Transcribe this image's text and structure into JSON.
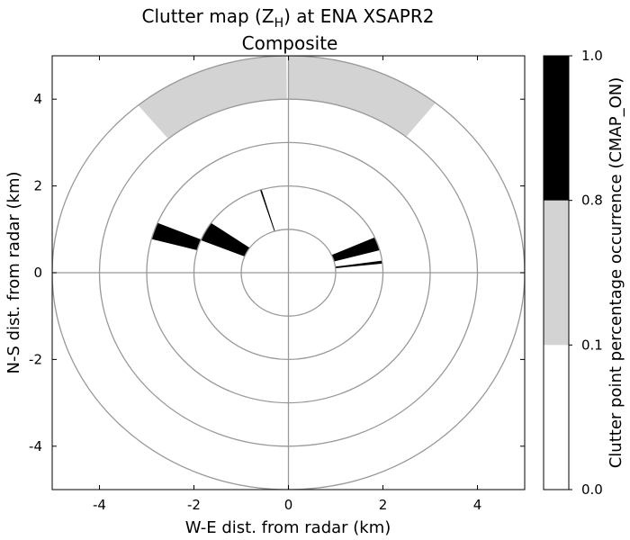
{
  "chart_data": {
    "type": "polar-clutter-map",
    "title": {
      "prefix": "Clutter map (Z",
      "subscript": "H",
      "suffix": ") at ENA XSAPR2",
      "line2": "Composite"
    },
    "xlabel": "W-E dist. from radar (km)",
    "ylabel": "N-S dist. from radar (km)",
    "xlim": [
      -5,
      5
    ],
    "ylim": [
      -5,
      5
    ],
    "xticks": [
      -4,
      -2,
      0,
      2,
      4
    ],
    "yticks": [
      -4,
      -2,
      0,
      2,
      4
    ],
    "xtick_labels": [
      "-4",
      "-2",
      "0",
      "2",
      "4"
    ],
    "ytick_labels": [
      "-4",
      "-2",
      "0",
      "2",
      "4"
    ],
    "range_rings_km": [
      1,
      2,
      3,
      4,
      5
    ],
    "cross_axes": true,
    "colors": {
      "white": "#ffffff",
      "gray": "#d3d3d3",
      "black": "#000000",
      "ring": "#999999"
    },
    "sectors": [
      {
        "az": [
          -39.5,
          -0.5
        ],
        "r": [
          4,
          5
        ],
        "level": "gray"
      },
      {
        "az": [
          0.0,
          38.5
        ],
        "r": [
          4,
          5
        ],
        "level": "gray"
      },
      {
        "az": [
          -75.0,
          -67.5
        ],
        "r": [
          2,
          3
        ],
        "level": "black"
      },
      {
        "az": [
          -68.0,
          -55.0
        ],
        "r": [
          1,
          2
        ],
        "level": "black"
      },
      {
        "az": [
          -17.5,
          -16.5
        ],
        "r": [
          1,
          2
        ],
        "level": "black"
      },
      {
        "az": [
          66.0,
          75.0
        ],
        "r": [
          1,
          2
        ],
        "level": "black"
      },
      {
        "az": [
          82.0,
          84.0
        ],
        "r": [
          1,
          2
        ],
        "level": "black"
      }
    ],
    "colorbar": {
      "label": "Clutter point percentage occurrence (CMAP_ON)",
      "segments": [
        {
          "color": "#ffffff",
          "from": 0.0,
          "to": 0.1
        },
        {
          "color": "#d3d3d3",
          "from": 0.1,
          "to": 0.8
        },
        {
          "color": "#000000",
          "from": 0.8,
          "to": 1.0
        }
      ],
      "ticks": [
        "0.0",
        "0.1",
        "0.8",
        "1.0"
      ]
    }
  }
}
